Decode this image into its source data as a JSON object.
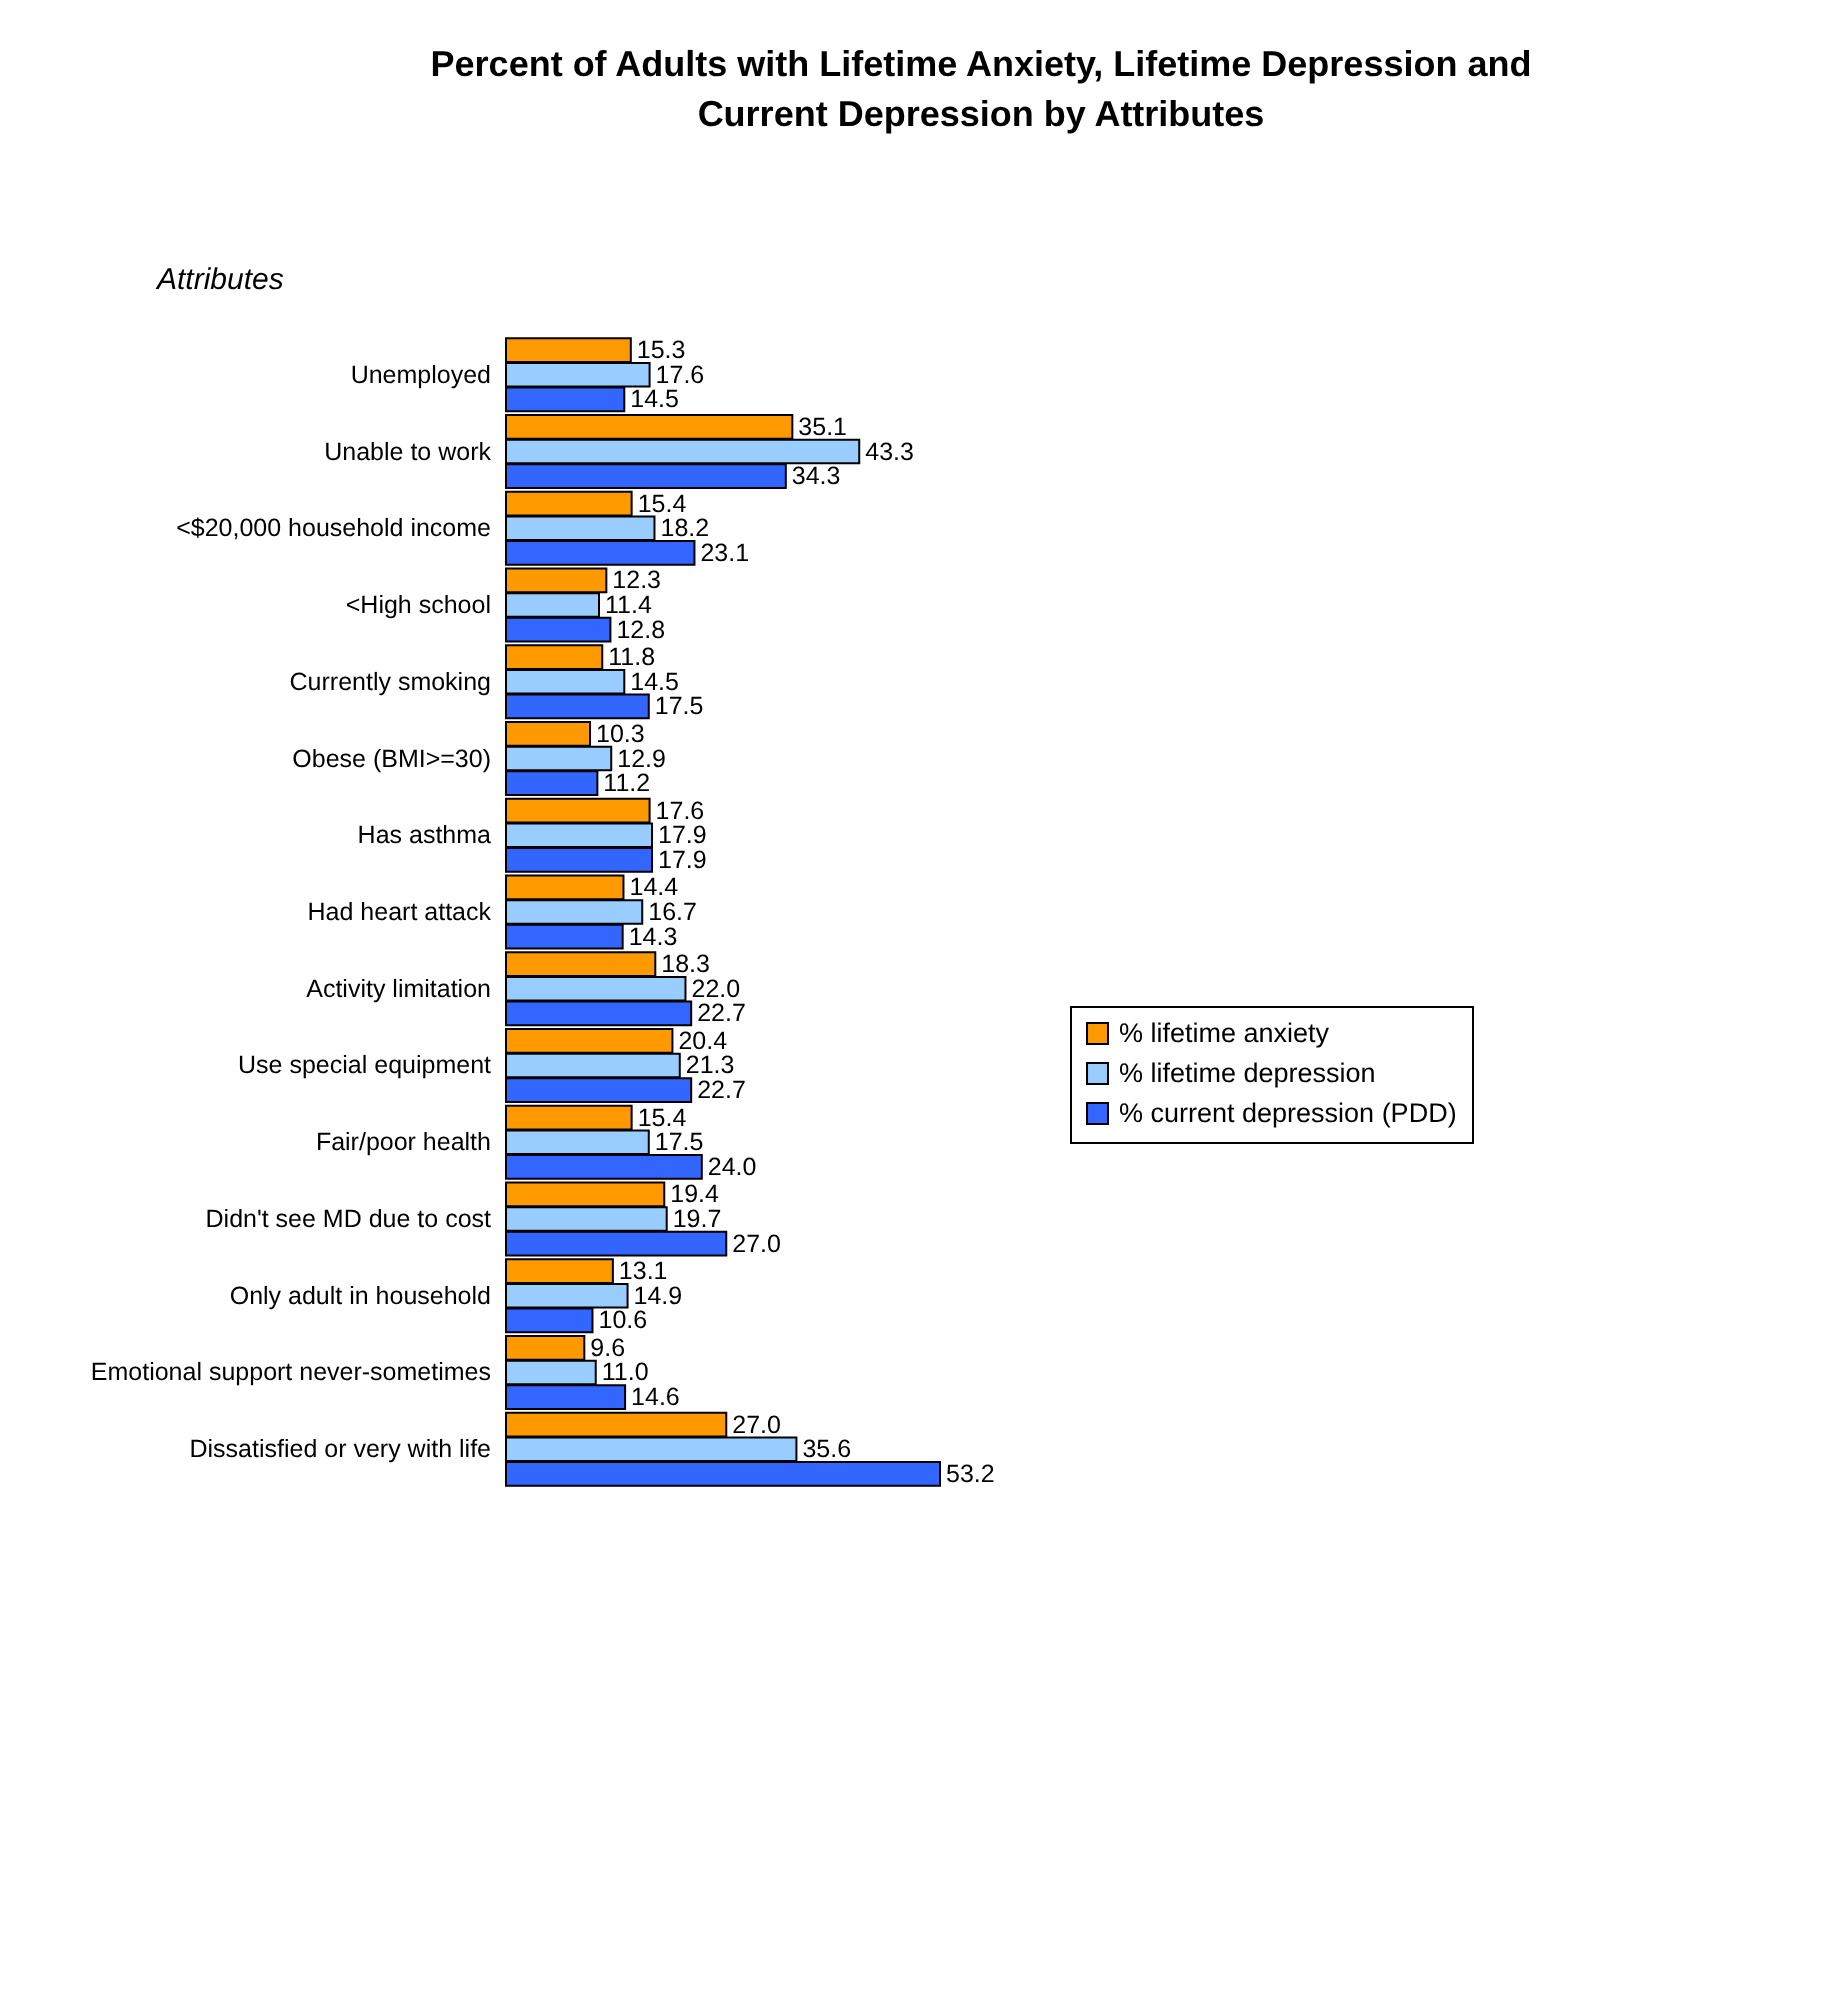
{
  "chart_data": {
    "type": "bar",
    "orientation": "horizontal",
    "title": "Percent of Adults with Lifetime Anxiety, Lifetime Depression and Current Depression by Attributes",
    "ylabel": "Attributes",
    "categories": [
      "Unemployed",
      "Unable to work",
      "<$20,000 household income",
      "<High school",
      "Currently smoking",
      "Obese (BMI>=30)",
      "Has asthma",
      "Had heart attack",
      "Activity limitation",
      "Use special equipment",
      "Fair/poor health",
      "Didn't see MD due to cost",
      "Only adult in household",
      "Emotional support never-sometimes",
      "Dissatisfied or very with life"
    ],
    "series": [
      {
        "name": "% lifetime anxiety",
        "color": "#ff9900",
        "values": [
          15.3,
          35.1,
          15.4,
          12.3,
          11.8,
          10.3,
          17.6,
          14.4,
          18.3,
          20.4,
          15.4,
          19.4,
          13.1,
          9.6,
          27.0
        ],
        "value_labels": [
          "15.3",
          "35.1",
          "15.4",
          "12.3",
          "11.8",
          "10.3",
          "17.6",
          "14.4",
          "18.3",
          "20.4",
          "15.4",
          "19.4",
          "13.1",
          "9.6",
          "27.0"
        ]
      },
      {
        "name": "% lifetime depression",
        "color": "#99ccff",
        "values": [
          17.6,
          43.3,
          18.2,
          11.4,
          14.5,
          12.9,
          17.9,
          16.7,
          22.0,
          21.3,
          17.5,
          19.7,
          14.9,
          11.0,
          35.6
        ],
        "value_labels": [
          "17.6",
          "43.3",
          "18.2",
          "11.4",
          "14.5",
          "12.9",
          "17.9",
          "16.7",
          "22.0",
          "21.3",
          "17.5",
          "19.7",
          "14.9",
          "11.0",
          "35.6"
        ]
      },
      {
        "name": "% current depression (PDD)",
        "color": "#3366ff",
        "values": [
          14.5,
          34.3,
          23.1,
          12.8,
          17.5,
          11.2,
          17.9,
          14.3,
          22.7,
          22.7,
          24.0,
          27.0,
          10.6,
          14.6,
          53.2
        ],
        "value_labels": [
          "14.5",
          "34.3",
          "23.1",
          "12.8",
          "17.5",
          "11.2",
          "17.9",
          "14.3",
          "22.7",
          "22.7",
          "24.0",
          "27.0",
          "10.6",
          "14.6",
          "53.2"
        ]
      }
    ],
    "legend": "right",
    "grid": false
  }
}
